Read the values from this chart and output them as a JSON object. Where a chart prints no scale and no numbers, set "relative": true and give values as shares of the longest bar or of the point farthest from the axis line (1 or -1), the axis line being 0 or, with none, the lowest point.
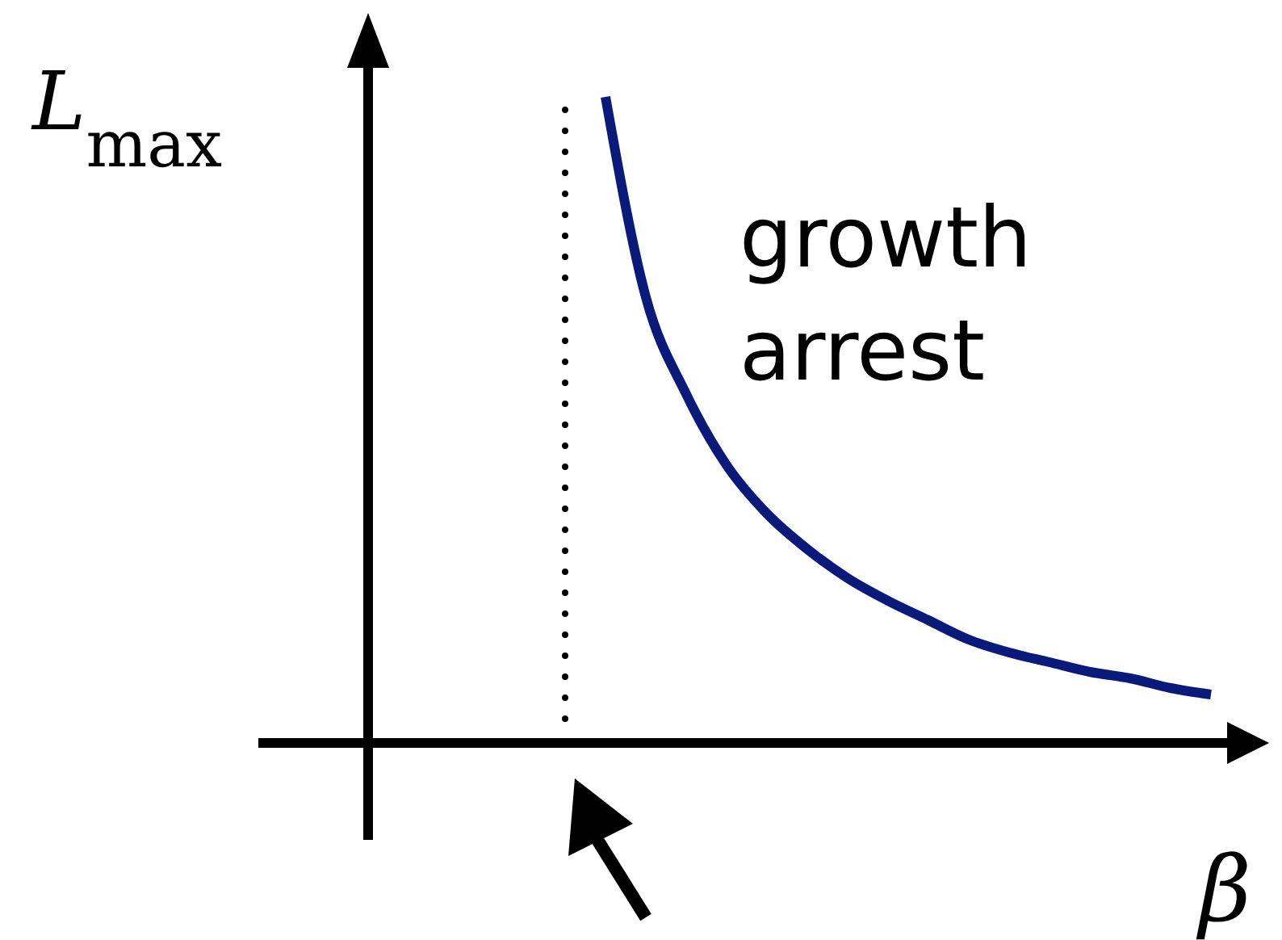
{
  "chart_data": {
    "type": "line",
    "relative": true,
    "xlabel": "β",
    "ylabel": "L$_{max}$",
    "categories": [
      null,
      null,
      null,
      null,
      null,
      null,
      null,
      null,
      null,
      null,
      null,
      null,
      null,
      null,
      null,
      null
    ],
    "series": [
      {
        "color": "#0a1a7a",
        "values": [
          1.0,
          0.69,
          0.54,
          0.43,
          0.355,
          0.3,
          0.255,
          0.22,
          0.19,
          0.16,
          0.14,
          0.125,
          0.11,
          0.1,
          0.085,
          0.075
        ]
      }
    ],
    "annotations": [
      "growth arrest"
    ]
  }
}
